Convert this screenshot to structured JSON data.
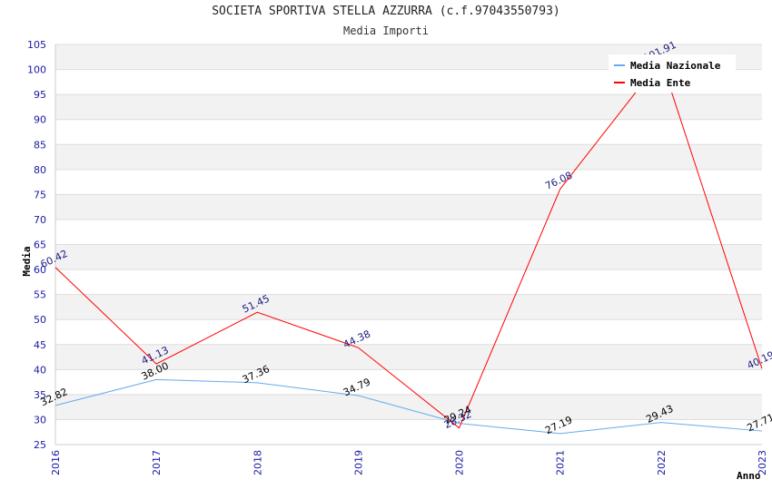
{
  "chart_data": {
    "type": "line",
    "title": "SOCIETA SPORTIVA STELLA AZZURRA (c.f.97043550793)",
    "subtitle": "Media Importi",
    "xlabel": "Anno",
    "ylabel": "Media",
    "categories": [
      "2016",
      "2017",
      "2018",
      "2019",
      "2020",
      "2021",
      "2022",
      "2023"
    ],
    "ylim": [
      25,
      105
    ],
    "yticks": [
      "25",
      "30",
      "35",
      "40",
      "45",
      "50",
      "55",
      "60",
      "65",
      "70",
      "75",
      "80",
      "85",
      "90",
      "95",
      "100",
      "105"
    ],
    "grid": true,
    "legend_position": "top-right",
    "series": [
      {
        "name": "Media Nazionale",
        "color": "#66aaee",
        "label_color": "#000000",
        "values": [
          32.82,
          38.0,
          37.36,
          34.79,
          29.24,
          27.19,
          29.43,
          27.71
        ],
        "labels": [
          "32.82",
          "38.00",
          "37.36",
          "34.79",
          "29.24",
          "27.19",
          "29.43",
          "27.71"
        ]
      },
      {
        "name": "Media Ente",
        "color": "#ff0000",
        "label_color": "#1a1a80",
        "values": [
          60.42,
          41.13,
          51.45,
          44.38,
          28.32,
          76.08,
          101.91,
          40.19
        ],
        "labels": [
          "60.42",
          "41.13",
          "51.45",
          "44.38",
          "28.32",
          "76.08",
          "101.91",
          "40.19"
        ]
      }
    ]
  }
}
